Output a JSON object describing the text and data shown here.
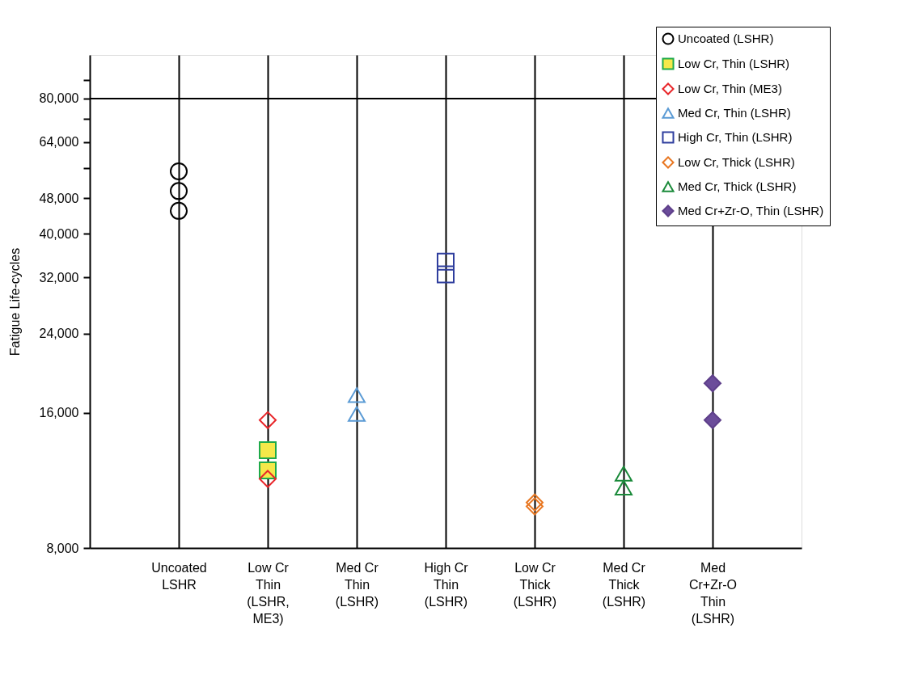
{
  "chart_data": {
    "type": "scatter",
    "ylabel": "Fatigue Life-cycles",
    "log": "y",
    "grid": "x",
    "legend": "top right",
    "categories": [
      "Uncoated\nLSHR",
      "Low Cr\nThin\n(LSHR,\nME3)",
      "Med Cr\nThin\n(LSHR)",
      "High Cr\nThin\n(LSHR)",
      "Low Cr\nThick\n(LSHR)",
      "Med Cr\nThick\n(LSHR)",
      "Med\nCr+Zr-O\nThin\n(LSHR)"
    ],
    "ylim": [
      8000,
      100000
    ],
    "yticks": [
      {
        "value": 8000,
        "label": "8,000"
      },
      {
        "value": 16000,
        "label": "16,000"
      },
      {
        "value": 24000,
        "label": "24,000"
      },
      {
        "value": 32000,
        "label": "32,000"
      },
      {
        "value": 40000,
        "label": "40,000"
      },
      {
        "value": 48000,
        "label": "48,000"
      },
      {
        "value": 56000,
        "label": null
      },
      {
        "value": 64000,
        "label": "64,000"
      },
      {
        "value": 72000,
        "label": null
      },
      {
        "value": 80000,
        "label": "80,000"
      },
      {
        "value": 88000,
        "label": null
      }
    ],
    "ref_lines": [
      {
        "axis": "y",
        "value": 80000,
        "color": "#000000"
      }
    ],
    "series": [
      {
        "name": "Uncoated (LSHR)",
        "color": "#000000",
        "marker": "circle",
        "x": [
          "Uncoated\nLSHR",
          "Uncoated\nLSHR",
          "Uncoated\nLSHR"
        ],
        "values": [
          55100,
          49800,
          45000
        ]
      },
      {
        "name": "Low Cr, Thin (LSHR)",
        "color": "#1faa4a",
        "colors": [
          "#f5e84a",
          "#f5e84a"
        ],
        "marker": "square",
        "x": [
          "Low Cr\nThin\n(LSHR,\nME3)",
          "Low Cr\nThin\n(LSHR,\nME3)"
        ],
        "values": [
          13200,
          11900
        ]
      },
      {
        "name": "Low Cr, Thin (ME3)",
        "color": "#e8262a",
        "marker": "diamond",
        "x": [
          "Low Cr\nThin\n(LSHR,\nME3)",
          "Low Cr\nThin\n(LSHR,\nME3)"
        ],
        "values": [
          15400,
          11400
        ]
      },
      {
        "name": "Med Cr, Thin (LSHR)",
        "color": "#5b9bd5",
        "marker": "triangle",
        "x": [
          "Med Cr\nThin\n(LSHR)",
          "Med Cr\nThin\n(LSHR)"
        ],
        "values": [
          17500,
          15900
        ]
      },
      {
        "name": "High Cr, Thin (LSHR)",
        "color": "#2f3e9e",
        "marker": "square",
        "x": [
          "High Cr\nThin\n(LSHR)",
          "High Cr\nThin\n(LSHR)"
        ],
        "values": [
          34700,
          32500
        ]
      },
      {
        "name": "Low Cr, Thick (LSHR)",
        "color": "#e87722",
        "marker": "diamond",
        "x": [
          "Low Cr\nThick\n(LSHR)",
          "Low Cr\nThick\n(LSHR)"
        ],
        "values": [
          10100,
          9900
        ]
      },
      {
        "name": "Med Cr, Thick (LSHR)",
        "color": "#1a8a3a",
        "marker": "triangle",
        "x": [
          "Med Cr\nThick\n(LSHR)",
          "Med Cr\nThick\n(LSHR)"
        ],
        "values": [
          11700,
          10900
        ]
      },
      {
        "name": "Med Cr+Zr-O, Thin (LSHR)",
        "color": "#5e3f8a",
        "colors": [
          "#6b4c9a",
          "#6b4c9a"
        ],
        "marker": "diamond",
        "x": [
          "Med\nCr+Zr-O\nThin\n(LSHR)",
          "Med\nCr+Zr-O\nThin\n(LSHR)"
        ],
        "values": [
          18600,
          15400
        ]
      }
    ]
  }
}
